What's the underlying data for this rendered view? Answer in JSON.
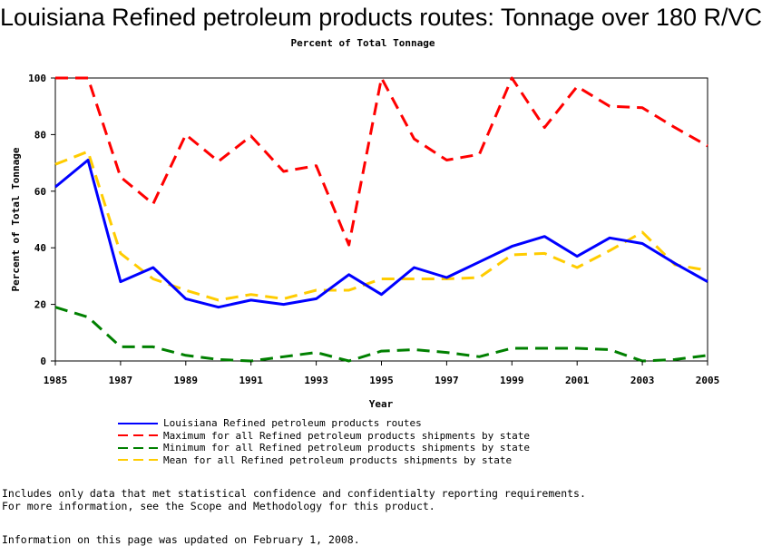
{
  "chart_data": {
    "type": "line",
    "title": "Louisiana Refined petroleum products routes: Tonnage over 180 R/VC",
    "subtitle": "Percent of Total Tonnage",
    "xlabel": "Year",
    "ylabel": "Percent of Total Tonnage",
    "xlim": [
      1985,
      2005
    ],
    "ylim": [
      0,
      100
    ],
    "xticks": [
      "1985",
      "1987",
      "1989",
      "1991",
      "1993",
      "1995",
      "1997",
      "1999",
      "2001",
      "2003",
      "2005"
    ],
    "yticks": [
      "0",
      "20",
      "40",
      "60",
      "80",
      "100"
    ],
    "x": [
      1985,
      1986,
      1987,
      1988,
      1989,
      1990,
      1991,
      1992,
      1993,
      1994,
      1995,
      1996,
      1997,
      1998,
      1999,
      2000,
      2001,
      2002,
      2003,
      2004,
      2005
    ],
    "series": [
      {
        "name": "Louisiana Refined petroleum products routes",
        "color": "#0000ff",
        "style": "solid",
        "values": [
          61.5,
          71,
          28,
          33,
          22,
          19,
          21.5,
          20,
          22,
          30.5,
          23.5,
          33,
          29.5,
          35,
          40.5,
          44,
          37,
          43.5,
          41.5,
          34.5,
          28
        ]
      },
      {
        "name": "Maximum for all Refined petroleum products shipments by state",
        "color": "#ff0000",
        "style": "dashed",
        "values": [
          100,
          100,
          65,
          55.5,
          80,
          70.5,
          79.5,
          67,
          69,
          41,
          100,
          78.5,
          71,
          73,
          100,
          82.5,
          97,
          90,
          89.5,
          82.5,
          76
        ]
      },
      {
        "name": "Minimum for all Refined petroleum products shipments by state",
        "color": "#008000",
        "style": "dashed",
        "values": [
          19,
          15.5,
          5,
          5,
          2,
          0.5,
          0,
          1.5,
          3,
          0,
          3.5,
          4,
          3,
          1.5,
          4.5,
          4.5,
          4.5,
          4,
          0,
          0.5,
          2
        ]
      },
      {
        "name": "Mean for all Refined petroleum products shipments by state",
        "color": "#ffcc00",
        "style": "dashed",
        "values": [
          69.5,
          74,
          38,
          29,
          25,
          21.5,
          23.5,
          22,
          25,
          25,
          29,
          29,
          29,
          29.5,
          37.5,
          38,
          33,
          39,
          45.5,
          34,
          32
        ]
      }
    ],
    "grid": false,
    "legend": "bottom"
  },
  "notes": [
    "Includes only data that met statistical confidence and confidentialty reporting requirements.",
    "For more information, see the Scope and Methodology for this product."
  ],
  "updated": "Information on this page was updated on February 1, 2008."
}
